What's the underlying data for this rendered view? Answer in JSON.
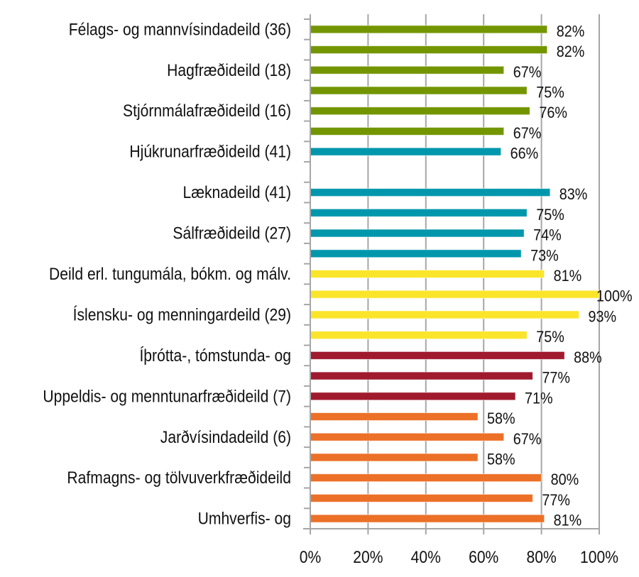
{
  "chart_data": {
    "type": "bar",
    "orientation": "horizontal",
    "title": "",
    "xlabel": "",
    "ylabel": "",
    "xlim": [
      0,
      100
    ],
    "x_ticks": [
      "0%",
      "20%",
      "40%",
      "60%",
      "80%",
      "100%"
    ],
    "grid": "vertical",
    "categories": [
      "Félags- og mannvísindadeild (36)",
      "",
      "Hagfræðideild (18)",
      "",
      "Stjórnmálafræðideild (16)",
      "",
      "Hjúkrunarfræðideild (41)",
      "",
      "Læknadeild (41)",
      "",
      "Sálfræðideild (27)",
      "",
      "Deild erl. tungumála, bókm. og málv.",
      "",
      "Íslensku- og menningardeild (29)",
      "",
      "Íþrótta-, tómstunda- og",
      "",
      "Uppeldis- og menntunarfræðideild (7)",
      "",
      "Jarðvísindadeild (6)",
      "",
      "Rafmagns- og tölvuverkfræðideild",
      "",
      "Umhverfis- og"
    ],
    "values": [
      82,
      82,
      67,
      75,
      76,
      67,
      66,
      null,
      83,
      75,
      74,
      73,
      81,
      100,
      93,
      75,
      88,
      77,
      71,
      58,
      67,
      58,
      80,
      77,
      81
    ],
    "data_labels": [
      "82%",
      "82%",
      "67%",
      "75%",
      "76%",
      "67%",
      "66%",
      "",
      "83%",
      "75%",
      "74%",
      "73%",
      "81%",
      "100%",
      "93%",
      "75%",
      "88%",
      "77%",
      "71%",
      "58%",
      "67%",
      "58%",
      "80%",
      "77%",
      "81%"
    ],
    "bar_colors": [
      "#739600",
      "#739600",
      "#739600",
      "#739600",
      "#739600",
      "#739600",
      "#0097ac",
      "#0097ac",
      "#0097ac",
      "#0097ac",
      "#0097ac",
      "#0097ac",
      "#fbe52a",
      "#fbe52a",
      "#fbe52a",
      "#fbe52a",
      "#a01a2e",
      "#a01a2e",
      "#a01a2e",
      "#ec7028",
      "#ec7028",
      "#ec7028",
      "#ec7028",
      "#ec7028",
      "#ec7028"
    ],
    "unit": "%"
  }
}
